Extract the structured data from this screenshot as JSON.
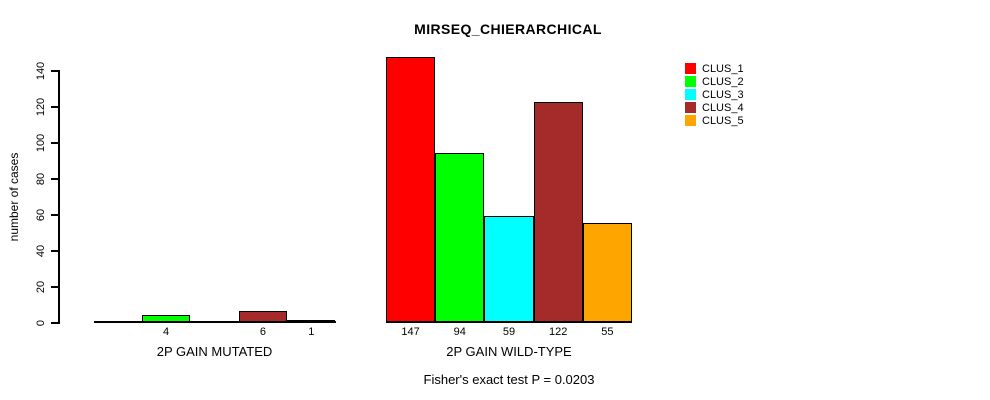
{
  "title": "MIRSEQ_CHIERARCHICAL",
  "footer": "Fisher's exact test P = 0.0203",
  "y_axis": {
    "label": "number of cases",
    "ticks": [
      0,
      20,
      40,
      60,
      80,
      100,
      120,
      140
    ]
  },
  "chart_data": {
    "type": "bar",
    "title": "MIRSEQ_CHIERARCHICAL",
    "xlabel": "",
    "ylabel": "number of cases",
    "ylim": [
      0,
      140
    ],
    "yticks": [
      0,
      20,
      40,
      60,
      80,
      100,
      120,
      140
    ],
    "grid": false,
    "legend_position": "top-right",
    "categories": [
      "2P GAIN MUTATED",
      "2P GAIN WILD-TYPE"
    ],
    "series": [
      {
        "name": "CLUS_1",
        "color": "#FF0000",
        "values": [
          0,
          147
        ]
      },
      {
        "name": "CLUS_2",
        "color": "#00FF00",
        "values": [
          4,
          94
        ]
      },
      {
        "name": "CLUS_3",
        "color": "#00FFFF",
        "values": [
          0,
          59
        ]
      },
      {
        "name": "CLUS_4",
        "color": "#A52A2A",
        "values": [
          6,
          122
        ]
      },
      {
        "name": "CLUS_5",
        "color": "#FFA500",
        "values": [
          1,
          55
        ]
      }
    ],
    "value_labels": "shown below each nonzero bar",
    "annotation": "Fisher's exact test P = 0.0203"
  }
}
